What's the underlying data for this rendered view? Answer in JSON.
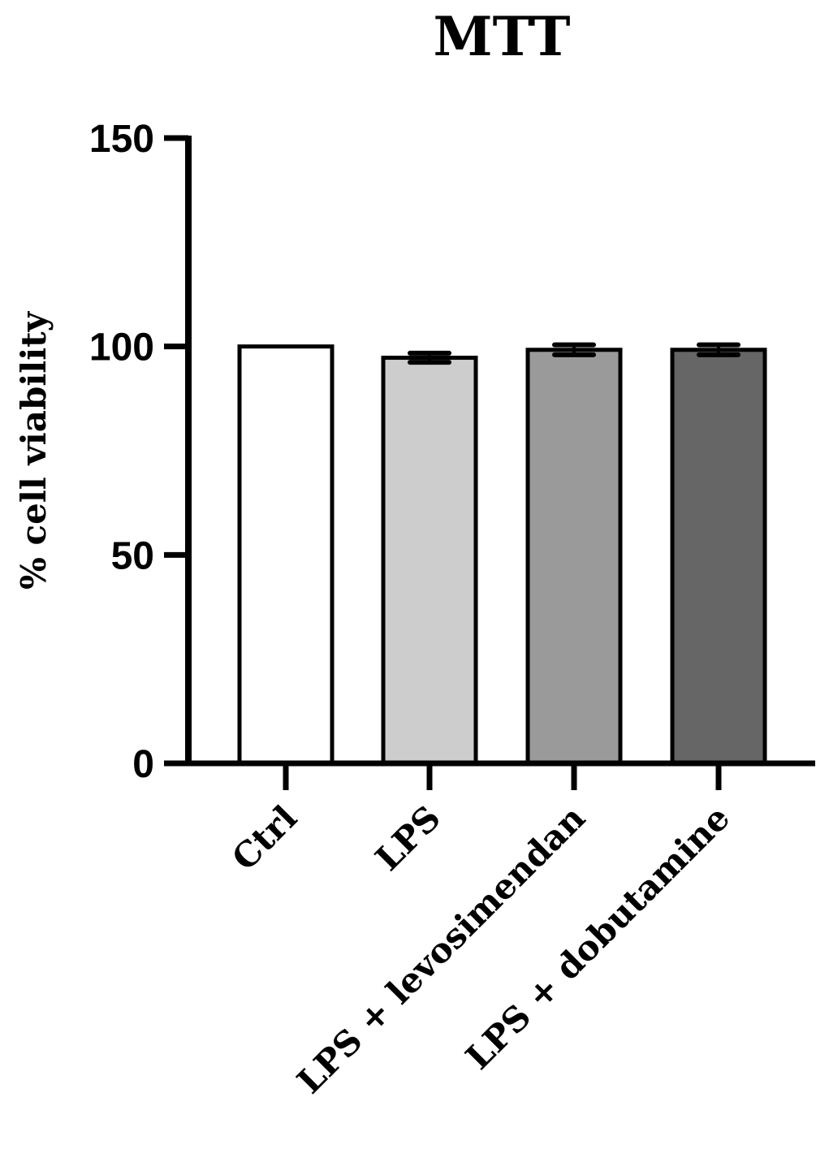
{
  "chart_data": {
    "type": "bar",
    "title": "MTT",
    "xlabel": "",
    "ylabel": "% cell viability",
    "ylim": [
      0,
      150
    ],
    "yticks": [
      0,
      50,
      100,
      150
    ],
    "grid": false,
    "legend": null,
    "categories": [
      "Ctrl",
      "LPS",
      "LPS + levosimendan",
      "LPS + dobutamine"
    ],
    "values": [
      100,
      97.3,
      99.2,
      99.2
    ],
    "errors": [
      0,
      1.1,
      1.2,
      1.2
    ],
    "colors": [
      "#ffffff",
      "#cccdcc",
      "#999a99",
      "#666666"
    ]
  }
}
